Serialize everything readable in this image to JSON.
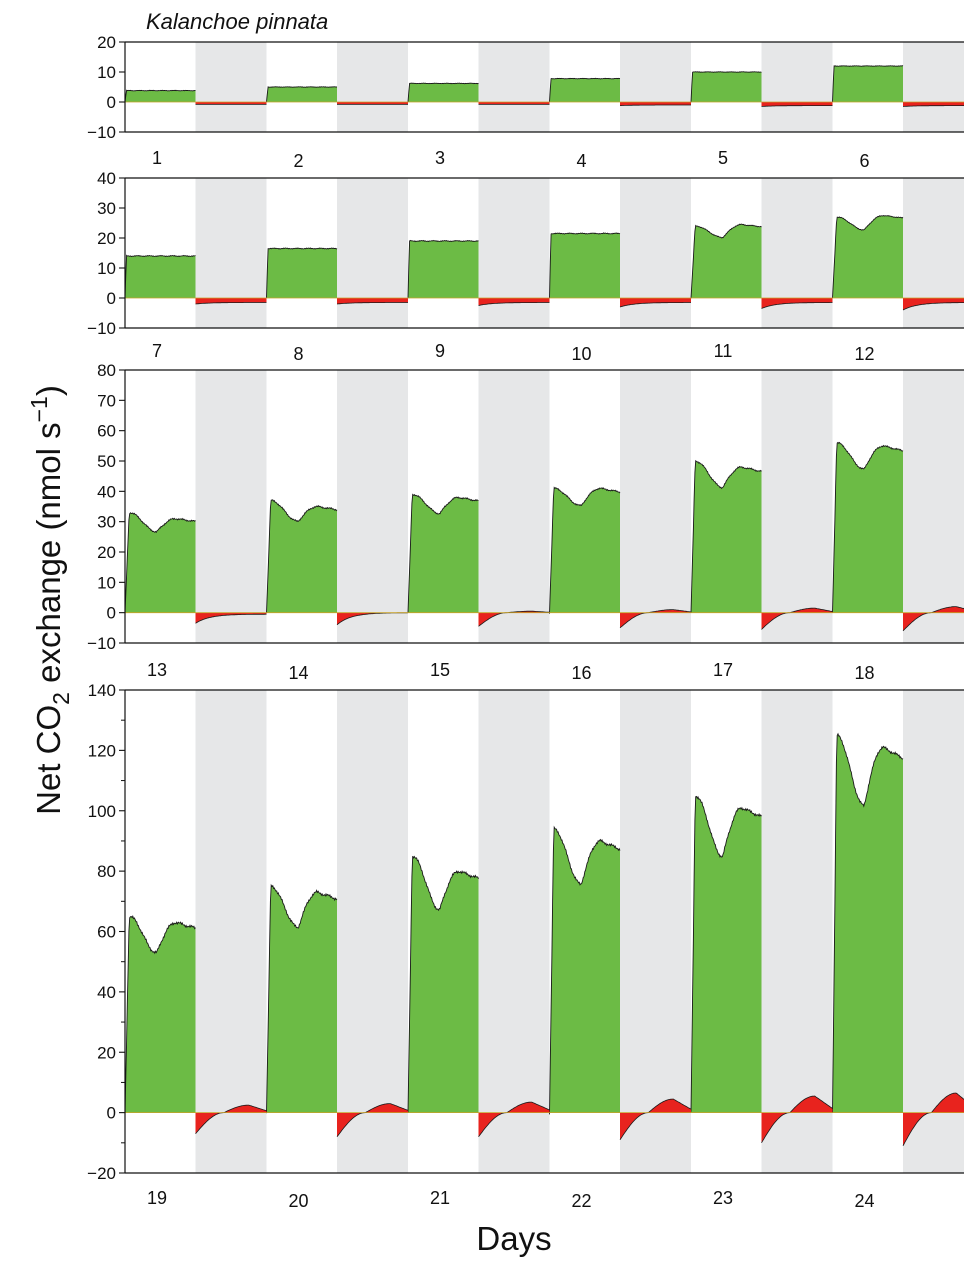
{
  "chart_data": {
    "type": "area",
    "title": "Kalanchoe pinnata",
    "xlabel": "Days",
    "ylabel": {
      "main": "Net CO",
      "subscript": "2",
      "unit_open": " exchange (nmol s",
      "superscript": "−1",
      "unit_close": ")"
    },
    "colors": {
      "uptake": "#6cbb45",
      "release": "#e8231e",
      "dark_period": "#e6e7e8",
      "outline": "#1a1a1a"
    },
    "panels": [
      {
        "ylim": [
          -10,
          20
        ],
        "yticks": [
          -10,
          0,
          10,
          20
        ],
        "ytick_labels": [
          "−10",
          "0",
          "10",
          "20"
        ],
        "days": [
          "1",
          "2",
          "3",
          "4",
          "5",
          "6"
        ],
        "day_uptake": [
          3.8,
          5,
          6.2,
          7.8,
          10,
          12
        ],
        "day_peak2": [
          3.8,
          5,
          6.2,
          7.8,
          10,
          12
        ],
        "night_min": [
          -0.8,
          -0.8,
          -0.8,
          -1.2,
          -1.5,
          -1.5
        ],
        "night_end": [
          -0.8,
          -0.8,
          -0.8,
          -1,
          -1.2,
          -1.2
        ]
      },
      {
        "ylim": [
          -10,
          40
        ],
        "yticks": [
          -10,
          0,
          10,
          20,
          30,
          40
        ],
        "ytick_labels": [
          "−10",
          "0",
          "10",
          "20",
          "30",
          "40"
        ],
        "days": [
          "7",
          "8",
          "9",
          "10",
          "11",
          "12"
        ],
        "day_uptake": [
          14,
          16.5,
          19,
          21.5,
          24,
          27
        ],
        "day_peak2": [
          14,
          16.5,
          19,
          21.5,
          24.5,
          27.5
        ],
        "night_min": [
          -2,
          -2,
          -2.5,
          -3,
          -3.5,
          -4
        ],
        "night_end": [
          -1.5,
          -1.5,
          -1.5,
          -1.5,
          -1.5,
          -1.5
        ]
      },
      {
        "ylim": [
          -10,
          80
        ],
        "yticks": [
          -10,
          0,
          10,
          20,
          30,
          40,
          50,
          60,
          70,
          80
        ],
        "ytick_labels": [
          "−10",
          "0",
          "10",
          "20",
          "30",
          "40",
          "50",
          "60",
          "70",
          "80"
        ],
        "days": [
          "13",
          "14",
          "15",
          "16",
          "17",
          "18"
        ],
        "day_uptake": [
          33,
          37,
          39,
          41,
          50,
          56
        ],
        "day_peak2": [
          31,
          35,
          38,
          41,
          48,
          55
        ],
        "night_min": [
          -3.5,
          -4,
          -4.5,
          -5,
          -5.5,
          -6
        ],
        "night_end": [
          -0.5,
          0,
          0.5,
          1,
          1.5,
          2
        ]
      },
      {
        "ylim": [
          -20,
          140
        ],
        "yticks": [
          -20,
          0,
          20,
          40,
          60,
          80,
          100,
          120,
          140
        ],
        "ytick_labels": [
          "−20",
          "0",
          "20",
          "40",
          "60",
          "80",
          "100",
          "120",
          "140"
        ],
        "days": [
          "19",
          "20",
          "21",
          "22",
          "23",
          "24"
        ],
        "day_uptake": [
          65,
          75,
          85,
          94,
          105,
          125
        ],
        "day_peak2": [
          63,
          73,
          80,
          90,
          101,
          121
        ],
        "night_min": [
          -7,
          -8,
          -8,
          -9,
          -10,
          -11
        ],
        "night_end": [
          2.5,
          3,
          3.5,
          4.5,
          5.5,
          6.5
        ]
      }
    ]
  }
}
